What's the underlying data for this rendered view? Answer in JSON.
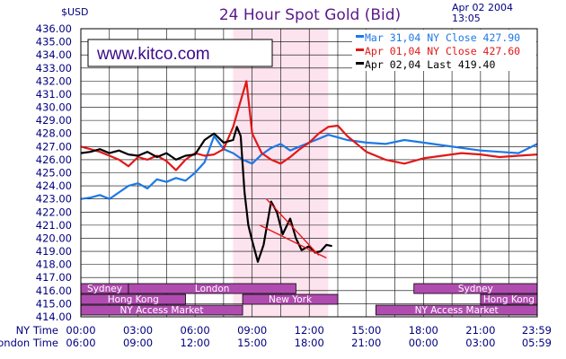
{
  "header": {
    "unit": "$USD",
    "title": "24 Hour Spot Gold (Bid)",
    "date": "Apr 02 2004",
    "time": "13:05",
    "website": "www.kitco.com"
  },
  "chart_data": {
    "type": "line",
    "title": "24 Hour Spot Gold (Bid)",
    "ylabel": "$USD",
    "ylim": [
      414,
      436
    ],
    "y_ticks": [
      "436.00",
      "435.00",
      "434.00",
      "433.00",
      "432.00",
      "431.00",
      "430.00",
      "429.00",
      "428.00",
      "427.00",
      "426.00",
      "425.00",
      "424.00",
      "423.00",
      "422.00",
      "421.00",
      "420.00",
      "419.00",
      "418.00",
      "417.00",
      "416.00",
      "415.00",
      "414.00"
    ],
    "x_axis_rows": [
      {
        "label": "NY Time",
        "ticks": [
          "00:00",
          "03:00",
          "06:00",
          "09:00",
          "12:00",
          "15:00",
          "18:00",
          "21:00",
          "23:59"
        ]
      },
      {
        "label": "London Time",
        "ticks": [
          "06:00",
          "09:00",
          "12:00",
          "15:00",
          "18:00",
          "21:00",
          "00:00",
          "03:00",
          "05:59"
        ]
      }
    ],
    "grid": true,
    "legend": "top-right",
    "series": [
      {
        "name": "Mar 31,04 NY Close 427.90",
        "color": "#1e78e6",
        "x": [
          0,
          0.5,
          1,
          1.5,
          2,
          2.5,
          3,
          3.5,
          4,
          4.5,
          5,
          5.5,
          6,
          6.5,
          7,
          7.5,
          8,
          8.5,
          9,
          9.5,
          10,
          10.5,
          11,
          11.5,
          12,
          12.5,
          13,
          13.5,
          14,
          15,
          16,
          17,
          18,
          19,
          20,
          21,
          22,
          23,
          23.98
        ],
        "y": [
          423.0,
          423.1,
          423.3,
          423.0,
          423.5,
          424.0,
          424.2,
          423.8,
          424.5,
          424.3,
          424.6,
          424.4,
          425.0,
          425.8,
          427.8,
          426.8,
          426.5,
          426.0,
          425.7,
          426.4,
          426.9,
          427.2,
          426.7,
          427.0,
          427.3,
          427.6,
          427.9,
          427.7,
          427.5,
          427.3,
          427.2,
          427.5,
          427.3,
          427.1,
          426.9,
          426.7,
          426.6,
          426.5,
          427.2
        ]
      },
      {
        "name": "Apr 01,04 NY Close 427.60",
        "color": "#e01818",
        "x": [
          0,
          0.5,
          1,
          1.5,
          2,
          2.5,
          3,
          3.5,
          4,
          4.5,
          5,
          5.5,
          6,
          6.5,
          7,
          7.5,
          8,
          8.3,
          8.7,
          9,
          9.5,
          10,
          10.5,
          11,
          11.5,
          12,
          12.5,
          13,
          13.5,
          14,
          15,
          16,
          17,
          18,
          19,
          20,
          21,
          22,
          23,
          23.98
        ],
        "y": [
          427.0,
          426.8,
          426.6,
          426.3,
          426.0,
          425.5,
          426.2,
          426.0,
          426.3,
          425.9,
          425.2,
          426.0,
          426.5,
          426.3,
          426.4,
          426.8,
          428.5,
          430.0,
          432.0,
          428.0,
          426.5,
          426.0,
          425.7,
          426.2,
          426.8,
          427.3,
          428.0,
          428.5,
          428.6,
          427.8,
          426.6,
          426.0,
          425.7,
          426.1,
          426.3,
          426.5,
          426.4,
          426.2,
          426.3,
          426.4
        ]
      },
      {
        "name": "Apr 02,04 Last 419.40",
        "color": "#000000",
        "x": [
          0,
          0.5,
          1,
          1.5,
          2,
          2.5,
          3,
          3.5,
          4,
          4.5,
          5,
          5.5,
          6,
          6.5,
          7,
          7.5,
          8,
          8.2,
          8.4,
          8.6,
          8.8,
          9,
          9.3,
          9.6,
          10,
          10.3,
          10.6,
          11,
          11.3,
          11.6,
          12,
          12.3,
          12.6,
          12.9,
          13.2
        ],
        "y": [
          426.5,
          426.6,
          426.8,
          426.5,
          426.7,
          426.4,
          426.3,
          426.6,
          426.2,
          426.5,
          426.0,
          426.3,
          426.4,
          427.5,
          428.0,
          427.3,
          427.5,
          428.5,
          427.8,
          423.5,
          421.0,
          419.8,
          418.2,
          419.5,
          422.8,
          422.0,
          420.3,
          421.5,
          420.0,
          419.1,
          419.4,
          418.9,
          419.0,
          419.5,
          419.4
        ]
      }
    ],
    "annotations": {
      "pink_band_hours": [
        8,
        13
      ],
      "trend_lines": [
        {
          "color": "#e01818",
          "points": [
            [
              9.75,
              423.0
            ],
            [
              12.5,
              418.7
            ]
          ]
        },
        {
          "color": "#e01818",
          "points": [
            [
              9.4,
              421.0
            ],
            [
              12.9,
              418.5
            ]
          ]
        }
      ]
    },
    "markets": [
      {
        "label": "Sydney",
        "row": 0,
        "start": 0,
        "end": 2.5
      },
      {
        "label": "London",
        "row": 0,
        "start": 2.5,
        "end": 11.3
      },
      {
        "label": "Sydney",
        "row": 0,
        "start": 17.5,
        "end": 23.98
      },
      {
        "label": "Hong Kong",
        "row": 1,
        "start": 0,
        "end": 5.5
      },
      {
        "label": "New York",
        "row": 1,
        "start": 8.5,
        "end": 13.5
      },
      {
        "label": "Hong Kong",
        "row": 1,
        "start": 21,
        "end": 23.98
      },
      {
        "label": "NY Access Market",
        "row": 2,
        "start": 0,
        "end": 8.5
      },
      {
        "label": "NY Access Market",
        "row": 2,
        "start": 15.5,
        "end": 23.98
      }
    ]
  }
}
